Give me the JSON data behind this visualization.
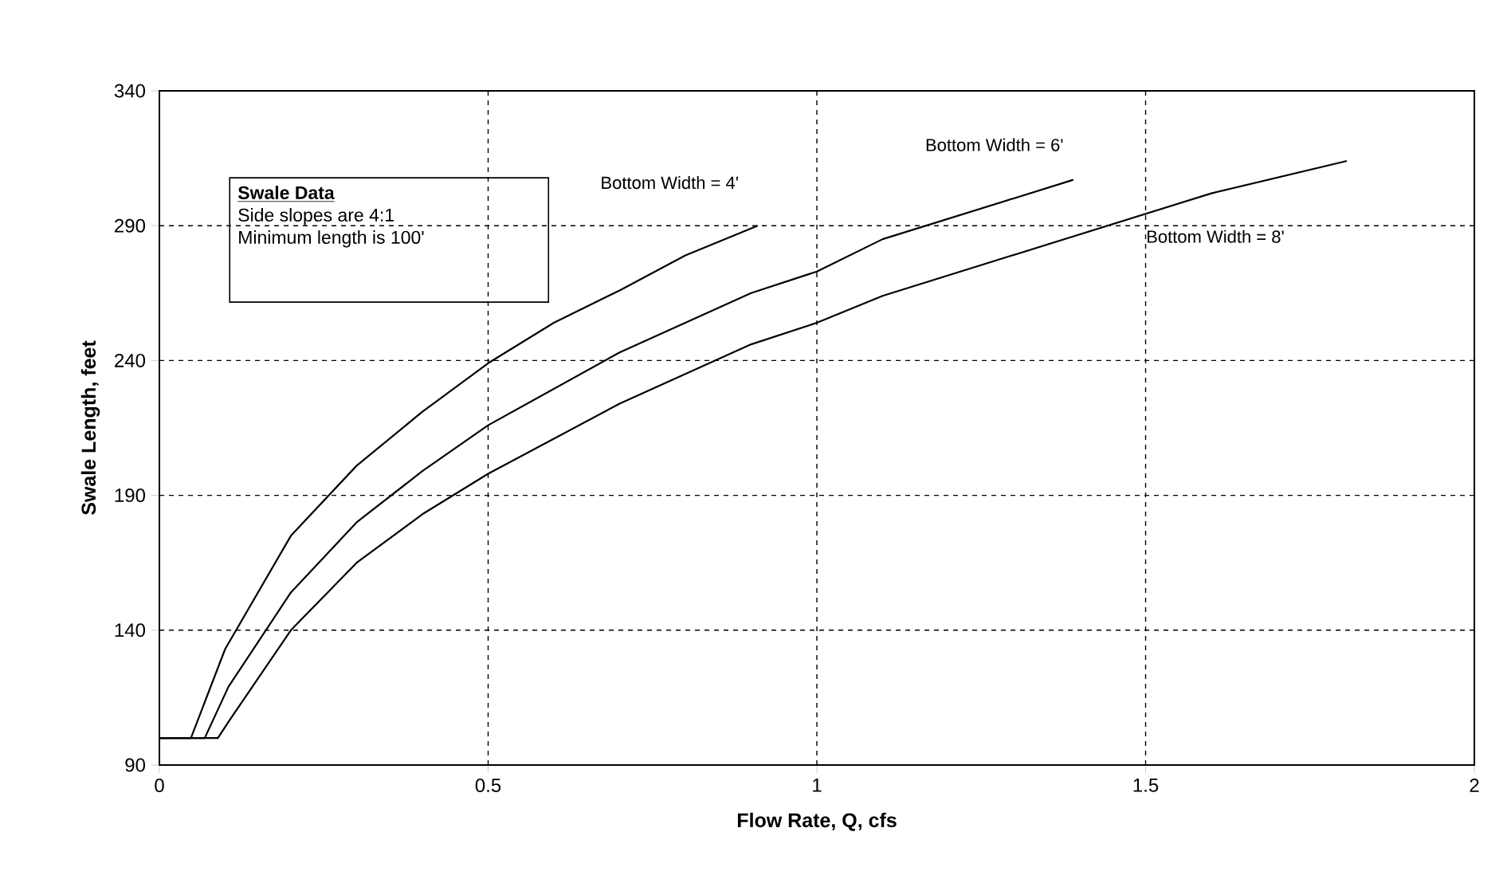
{
  "chart_data": {
    "type": "line",
    "xlabel": "Flow Rate, Q, cfs",
    "ylabel": "Swale Length, feet",
    "xlim": [
      0,
      2
    ],
    "ylim": [
      90,
      340
    ],
    "xticks": [
      0,
      0.5,
      1,
      1.5,
      2
    ],
    "yticks": [
      90,
      140,
      190,
      240,
      290,
      340
    ],
    "grid": true,
    "line_style": "solid",
    "marker": "none",
    "series": [
      {
        "name": "Bottom Width = 4'",
        "color": "#000000",
        "x": [
          0,
          0.048,
          0.1,
          0.2,
          0.3,
          0.4,
          0.5,
          0.6,
          0.7,
          0.8,
          0.91
        ],
        "values": [
          100,
          100,
          133,
          175,
          201,
          221,
          239,
          254,
          266,
          279,
          290
        ]
      },
      {
        "name": "Bottom Width = 6'",
        "color": "#000000",
        "x": [
          0,
          0.069,
          0.105,
          0.2,
          0.3,
          0.4,
          0.5,
          0.7,
          0.9,
          1.0,
          1.1,
          1.39
        ],
        "values": [
          100,
          100,
          119,
          154,
          180,
          199,
          216,
          243,
          265,
          273,
          285,
          307
        ]
      },
      {
        "name": "Bottom Width = 8'",
        "color": "#000000",
        "x": [
          0,
          0.089,
          0.105,
          0.2,
          0.3,
          0.4,
          0.5,
          0.7,
          0.9,
          1.0,
          1.1,
          1.6,
          1.806
        ],
        "values": [
          100,
          100,
          106,
          140,
          165,
          183,
          198,
          224,
          246,
          254,
          264,
          302,
          314
        ]
      }
    ],
    "annotations": [
      "Swale Data",
      "Side slopes are 4:1",
      "Minimum length is 100'"
    ]
  }
}
